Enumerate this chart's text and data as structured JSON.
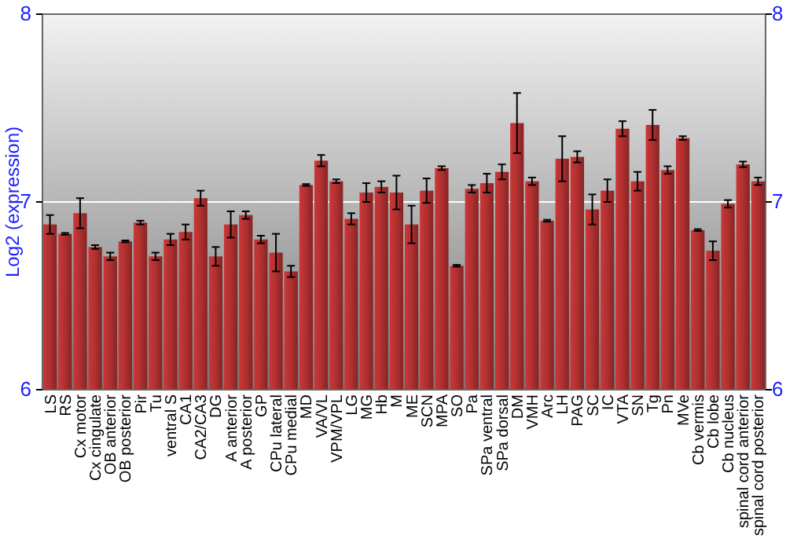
{
  "chart_data": {
    "type": "bar",
    "ylabel": "Log2 (expression)",
    "categories": [
      "LS",
      "RS",
      "Cx motor",
      "Cx cingulate",
      "OB anterior",
      "OB posterior",
      "Pir",
      "Tu",
      "ventral S",
      "CA1",
      "CA2/CA3",
      "DG",
      "A anterior",
      "A posterior",
      "GP",
      "CPu lateral",
      "CPu medial",
      "MD",
      "VA/VL",
      "VPM/VPL",
      "LG",
      "MG",
      "Hb",
      "M",
      "ME",
      "SCN",
      "MPA",
      "SO",
      "Pa",
      "SPa ventral",
      "SPa dorsal",
      "DM",
      "VMH",
      "Arc",
      "LH",
      "PAG",
      "SC",
      "IC",
      "VTA",
      "SN",
      "Tg",
      "Pn",
      "MVe",
      "Cb vermis",
      "Cb lobe",
      "Cb nucleus",
      "spinal cord anterior",
      "spinal cord posterior"
    ],
    "values": [
      6.88,
      6.83,
      6.94,
      6.76,
      6.71,
      6.79,
      6.89,
      6.71,
      6.8,
      6.84,
      7.02,
      6.71,
      6.88,
      6.93,
      6.8,
      6.73,
      6.63,
      7.09,
      7.22,
      7.11,
      6.91,
      7.05,
      7.08,
      7.05,
      6.88,
      7.06,
      7.18,
      6.66,
      7.07,
      7.1,
      7.16,
      7.42,
      7.11,
      6.9,
      7.23,
      7.24,
      6.96,
      7.06,
      7.39,
      7.11,
      7.41,
      7.17,
      7.34,
      6.85,
      6.74,
      6.99,
      7.2,
      7.11
    ],
    "errors": [
      0.05,
      0.005,
      0.08,
      0.01,
      0.02,
      0.005,
      0.01,
      0.02,
      0.03,
      0.04,
      0.04,
      0.05,
      0.07,
      0.02,
      0.02,
      0.1,
      0.03,
      0.005,
      0.03,
      0.01,
      0.03,
      0.05,
      0.03,
      0.09,
      0.1,
      0.065,
      0.01,
      0.005,
      0.02,
      0.05,
      0.04,
      0.16,
      0.02,
      0.005,
      0.12,
      0.03,
      0.08,
      0.06,
      0.04,
      0.05,
      0.08,
      0.02,
      0.01,
      0.005,
      0.05,
      0.02,
      0.015,
      0.02
    ],
    "color": "#b03030",
    "ylim": [
      6,
      8
    ],
    "yticks": [
      6,
      7,
      8
    ],
    "y2lim": [
      6,
      8
    ],
    "y2ticks": [
      6,
      7,
      8
    ],
    "grid": "y"
  }
}
